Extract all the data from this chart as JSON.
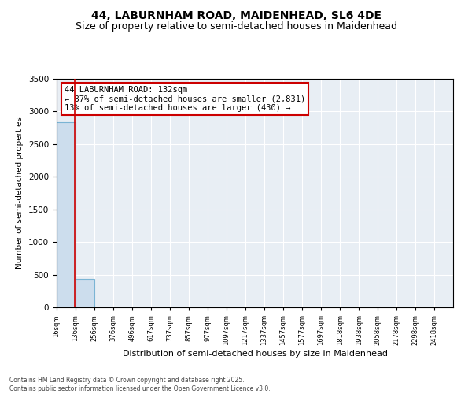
{
  "title": "44, LABURNHAM ROAD, MAIDENHEAD, SL6 4DE",
  "subtitle": "Size of property relative to semi-detached houses in Maidenhead",
  "xlabel": "Distribution of semi-detached houses by size in Maidenhead",
  "ylabel": "Number of semi-detached properties",
  "footnote1": "Contains HM Land Registry data © Crown copyright and database right 2025.",
  "footnote2": "Contains public sector information licensed under the Open Government Licence v3.0.",
  "annotation_title": "44 LABURNHAM ROAD: 132sqm",
  "annotation_line1": "← 87% of semi-detached houses are smaller (2,831)",
  "annotation_line2": "13% of semi-detached houses are larger (430) →",
  "property_size": 132,
  "smaller_count": 2831,
  "larger_count": 430,
  "smaller_pct": 87,
  "larger_pct": 13,
  "bin_edges": [
    16,
    136,
    256,
    376,
    496,
    617,
    737,
    857,
    977,
    1097,
    1217,
    1337,
    1457,
    1577,
    1697,
    1818,
    1938,
    2058,
    2178,
    2298,
    2418
  ],
  "bin_labels": [
    "16sqm",
    "136sqm",
    "256sqm",
    "376sqm",
    "496sqm",
    "617sqm",
    "737sqm",
    "857sqm",
    "977sqm",
    "1097sqm",
    "1217sqm",
    "1337sqm",
    "1457sqm",
    "1577sqm",
    "1697sqm",
    "1818sqm",
    "1938sqm",
    "2058sqm",
    "2178sqm",
    "2298sqm",
    "2418sqm"
  ],
  "bar_heights": [
    2831,
    430,
    0,
    0,
    0,
    0,
    0,
    0,
    0,
    0,
    0,
    0,
    0,
    0,
    0,
    0,
    0,
    0,
    0,
    0
  ],
  "bar_color": "#ccdded",
  "bar_edge_color": "#7ab4d4",
  "property_line_color": "#cc0000",
  "annotation_box_color": "#cc0000",
  "background_color": "#e8eef4",
  "ylim": [
    0,
    3500
  ],
  "yticks": [
    0,
    500,
    1000,
    1500,
    2000,
    2500,
    3000,
    3500
  ],
  "grid_color": "#ffffff",
  "title_fontsize": 10,
  "subtitle_fontsize": 9
}
